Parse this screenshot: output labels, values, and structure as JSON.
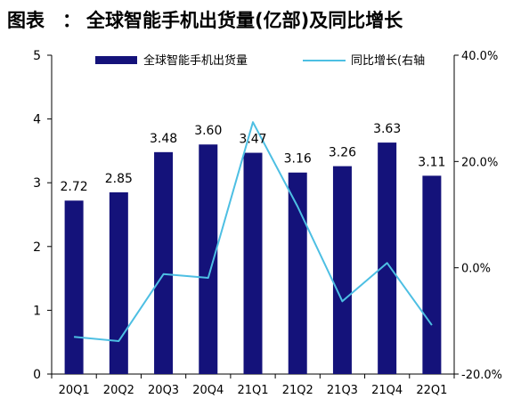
{
  "header": {
    "label": "图表",
    "colon": "：",
    "title": "全球智能手机出货量(亿部)及同比增长"
  },
  "colors": {
    "bar": "#14127a",
    "line": "#4dbfe3",
    "axis": "#000000"
  },
  "chart_data": {
    "type": "bar",
    "categories": [
      "20Q1",
      "20Q2",
      "20Q3",
      "20Q4",
      "21Q1",
      "21Q2",
      "21Q3",
      "21Q4",
      "22Q1"
    ],
    "series": [
      {
        "name": "全球智能手机出货量",
        "type": "bar",
        "axis": "left",
        "values": [
          2.72,
          2.85,
          3.48,
          3.6,
          3.47,
          3.16,
          3.26,
          3.63,
          3.11
        ],
        "data_labels": [
          "2.72",
          "2.85",
          "3.48",
          "3.60",
          "3.47",
          "3.16",
          "3.26",
          "3.63",
          "3.11"
        ]
      },
      {
        "name": "同比增长(右轴",
        "type": "line",
        "axis": "right",
        "values": [
          -13.0,
          -13.8,
          -1.2,
          -1.9,
          27.4,
          11.5,
          -6.3,
          0.9,
          -10.8
        ]
      }
    ],
    "left_axis": {
      "min": 0,
      "max": 5,
      "ticks": [
        "0",
        "1",
        "2",
        "3",
        "4",
        "5"
      ]
    },
    "right_axis": {
      "min": -20,
      "max": 40,
      "ticks": [
        "-20.0%",
        "0.0%",
        "20.0%",
        "40.0%"
      ]
    },
    "grid": false,
    "legend_position": "top"
  }
}
